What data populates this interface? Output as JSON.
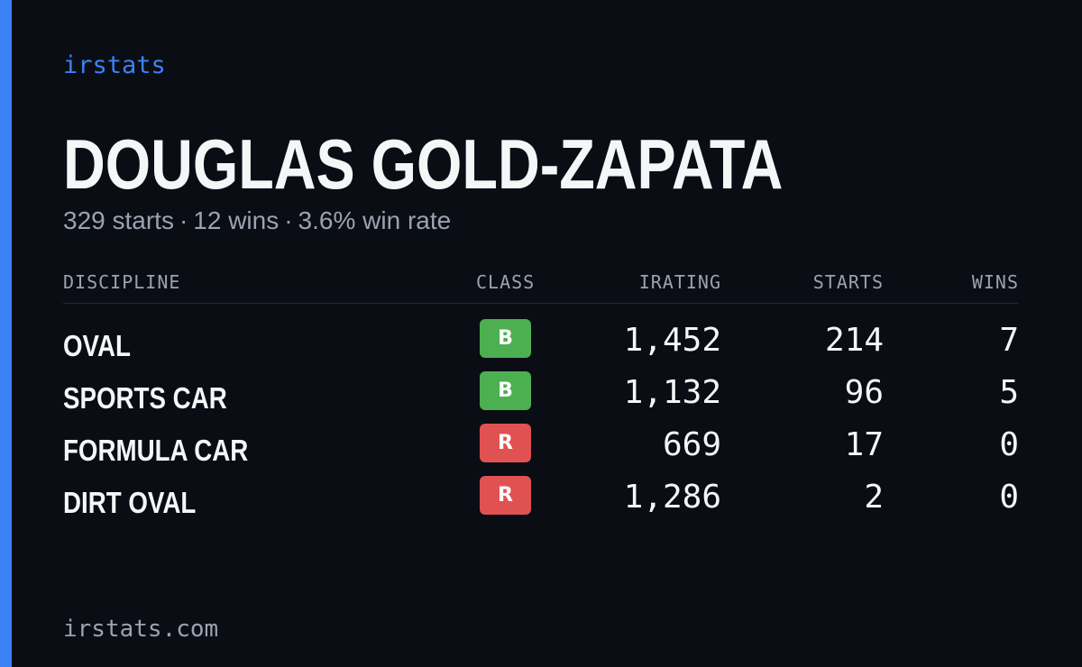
{
  "colors": {
    "accent": "#3b82f6",
    "class_b": "#4caf50",
    "class_r": "#e05252"
  },
  "brand": "irstats",
  "driver": {
    "name": "DOUGLAS GOLD-ZAPATA",
    "starts": "329 starts",
    "wins": "12 wins",
    "win_rate": "3.6% win rate",
    "separator": "·"
  },
  "table": {
    "headers": {
      "discipline": "DISCIPLINE",
      "class": "CLASS",
      "irating": "IRATING",
      "starts": "STARTS",
      "wins": "WINS"
    },
    "rows": [
      {
        "discipline": "OVAL",
        "class": "B",
        "irating": "1,452",
        "starts": "214",
        "wins": "7"
      },
      {
        "discipline": "SPORTS CAR",
        "class": "B",
        "irating": "1,132",
        "starts": "96",
        "wins": "5"
      },
      {
        "discipline": "FORMULA CAR",
        "class": "R",
        "irating": "669",
        "starts": "17",
        "wins": "0"
      },
      {
        "discipline": "DIRT OVAL",
        "class": "R",
        "irating": "1,286",
        "starts": "2",
        "wins": "0"
      }
    ]
  },
  "footer": "irstats.com"
}
